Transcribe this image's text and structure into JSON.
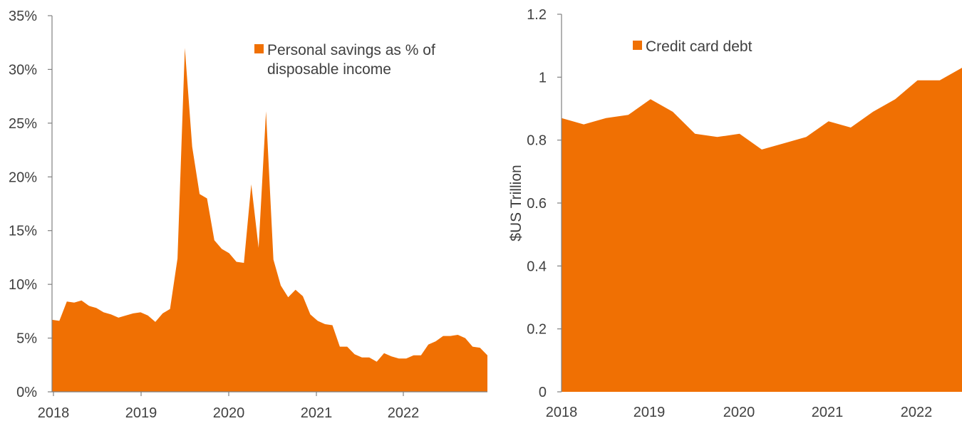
{
  "chart_data": [
    {
      "type": "area",
      "series": [
        {
          "name": "Personal savings as % of disposable income",
          "legend_lines": [
            "Personal savings as % of",
            "disposable income"
          ],
          "color": "#f07003",
          "x": [
            2018.0,
            2018.083,
            2018.167,
            2018.25,
            2018.333,
            2018.417,
            2018.5,
            2018.583,
            2018.667,
            2018.75,
            2018.833,
            2018.917,
            2019.0,
            2019.083,
            2019.167,
            2019.25,
            2019.333,
            2019.417,
            2019.5,
            2019.583,
            2019.667,
            2019.75,
            2019.833,
            2019.917,
            2020.0,
            2020.083,
            2020.167,
            2020.25,
            2020.333,
            2020.417,
            2020.5,
            2020.583,
            2020.667,
            2020.75,
            2020.833,
            2020.917,
            2021.0,
            2021.083,
            2021.167,
            2021.25,
            2021.333,
            2021.417,
            2021.5,
            2021.583,
            2021.667,
            2021.75,
            2021.833,
            2021.917,
            2022.0,
            2022.083,
            2022.167,
            2022.25,
            2022.333,
            2022.417,
            2022.5,
            2022.583,
            2022.667,
            2022.75,
            2022.833,
            2022.917
          ],
          "values": [
            6.7,
            6.6,
            8.4,
            8.3,
            8.5,
            8.0,
            7.8,
            7.4,
            7.2,
            6.9,
            7.1,
            7.3,
            7.4,
            7.1,
            6.5,
            7.3,
            7.7,
            12.4,
            32.0,
            22.8,
            18.4,
            18.0,
            14.1,
            13.3,
            12.9,
            12.1,
            12.0,
            19.3,
            13.4,
            26.1,
            12.3,
            9.9,
            8.8,
            9.5,
            8.9,
            7.2,
            6.6,
            6.3,
            6.2,
            4.2,
            4.2,
            3.5,
            3.2,
            3.2,
            2.8,
            3.6,
            3.3,
            3.1,
            3.1,
            3.4,
            3.4,
            4.4,
            4.7,
            5.2,
            5.2,
            5.3,
            5.0,
            4.2,
            4.1,
            3.4
          ]
        }
      ],
      "ylim": [
        0,
        35
      ],
      "yticks": [
        0,
        5,
        10,
        15,
        20,
        25,
        30,
        35
      ],
      "ytick_labels": [
        "0%",
        "5%",
        "10%",
        "15%",
        "20%",
        "25%",
        "30%",
        "35%"
      ],
      "xlim": [
        2018.0,
        2022.917
      ],
      "xtick_labels": [
        "2018",
        "2019",
        "2020",
        "2021",
        "2022"
      ],
      "xlabel": "",
      "ylabel": "",
      "legend_position": "top-right"
    },
    {
      "type": "area",
      "series": [
        {
          "name": "Credit card debt",
          "legend_lines": [
            "Credit card debt"
          ],
          "color": "#f07003",
          "x": [
            2018.0,
            2018.25,
            2018.5,
            2018.75,
            2019.0,
            2019.25,
            2019.5,
            2019.75,
            2020.0,
            2020.25,
            2020.5,
            2020.75,
            2021.0,
            2021.25,
            2021.5,
            2021.75,
            2022.0,
            2022.25,
            2022.5
          ],
          "values": [
            0.87,
            0.85,
            0.87,
            0.88,
            0.93,
            0.89,
            0.82,
            0.81,
            0.82,
            0.77,
            0.79,
            0.81,
            0.86,
            0.84,
            0.89,
            0.93,
            0.99,
            0.99,
            1.03
          ]
        }
      ],
      "ylim": [
        0,
        1.2
      ],
      "yticks": [
        0,
        0.2,
        0.4,
        0.6,
        0.8,
        1.0,
        1.2
      ],
      "ytick_labels": [
        "0",
        "0.2",
        "0.4",
        "0.6",
        "0.8",
        "1",
        "1.2"
      ],
      "xlim": [
        2018.0,
        2022.5
      ],
      "xtick_labels": [
        "2018",
        "2019",
        "2020",
        "2021",
        "2022"
      ],
      "xlabel": "",
      "ylabel": "$US Trillion",
      "legend_position": "top-left"
    }
  ]
}
